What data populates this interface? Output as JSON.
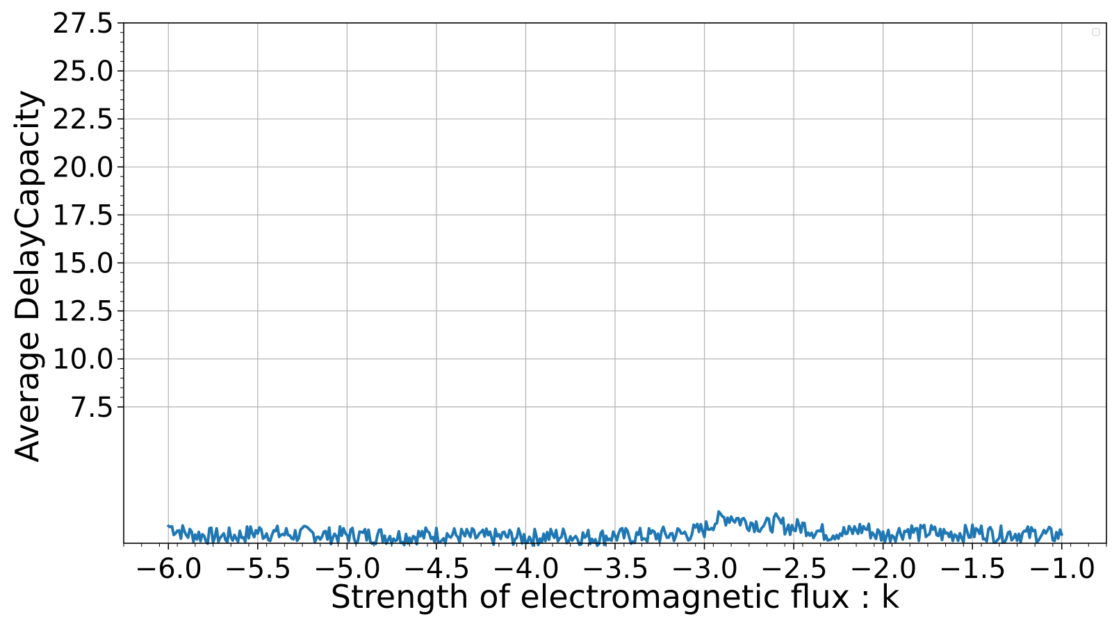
{
  "chart_data": {
    "type": "line",
    "title": "",
    "xlabel": "Strength of electromagnetic flux : k",
    "ylabel": "Average DelayCapacity",
    "xlim": [
      -6.25,
      -0.75
    ],
    "ylim": [
      0.4,
      27.5
    ],
    "x_tick_values": [
      -6.0,
      -5.5,
      -5.0,
      -4.5,
      -4.0,
      -3.5,
      -3.0,
      -2.5,
      -2.0,
      -1.5,
      -1.0
    ],
    "x_tick_labels": [
      "−6.0",
      "−5.5",
      "−5.0",
      "−4.5",
      "−4.0",
      "−3.5",
      "−3.0",
      "−2.5",
      "−2.0",
      "−1.5",
      "−1.0"
    ],
    "y_tick_values": [
      7.5,
      10.0,
      12.5,
      15.0,
      17.5,
      20.0,
      22.5,
      25.0,
      27.5
    ],
    "y_tick_labels": [
      "7.5",
      "10.0",
      "12.5",
      "15.0",
      "17.5",
      "20.0",
      "22.5",
      "25.0",
      "27.5"
    ],
    "grid": true,
    "legend": "top-right",
    "colors": {
      "line": "#1f77b4",
      "grid": "#b0b0b0",
      "axes": "#000000"
    },
    "series": [
      {
        "x": [
          -6.0,
          -5.9,
          -5.8,
          -5.7,
          -5.6,
          -5.5,
          -5.4,
          -5.3,
          -5.2,
          -5.1,
          -5.0,
          -4.9,
          -4.8,
          -4.7,
          -4.6,
          -4.5,
          -4.4,
          -4.3,
          -4.2,
          -4.1,
          -4.0,
          -3.9,
          -3.8,
          -3.7,
          -3.6,
          -3.5,
          -3.4,
          -3.3,
          -3.2,
          -3.1,
          -3.0,
          -2.95,
          -2.9,
          -2.85,
          -2.8,
          -2.75,
          -2.7,
          -2.65,
          -2.6,
          -2.55,
          -2.5,
          -2.45,
          -2.4,
          -2.35,
          -2.3,
          -2.25,
          -2.2,
          -2.15,
          -2.1,
          -2.05,
          -2.0,
          -1.95,
          -1.9,
          -1.85,
          -1.8,
          -1.75,
          -1.7,
          -1.65,
          -1.6,
          -1.55,
          -1.5,
          -1.45,
          -1.4,
          -1.35,
          -1.3,
          -1.25,
          -1.2,
          -1.15,
          -1.1,
          -1.05,
          -1.0
        ],
        "y": [
          1.3,
          0.9,
          0.8,
          0.75,
          0.8,
          1.0,
          0.9,
          0.85,
          0.9,
          0.8,
          0.85,
          0.8,
          0.8,
          0.75,
          0.8,
          0.85,
          0.8,
          0.75,
          0.7,
          0.75,
          0.7,
          0.75,
          0.8,
          0.75,
          0.7,
          0.8,
          0.75,
          0.8,
          0.85,
          0.9,
          1.1,
          1.5,
          1.7,
          1.8,
          1.6,
          1.5,
          1.4,
          1.3,
          1.5,
          1.3,
          1.2,
          1.3,
          1.1,
          1.0,
          0.9,
          1.0,
          0.9,
          1.1,
          1.2,
          0.9,
          0.8,
          0.9,
          1.0,
          1.1,
          0.9,
          1.0,
          0.9,
          0.85,
          0.9,
          0.9,
          0.95,
          1.0,
          0.9,
          0.85,
          0.9,
          0.9,
          0.85,
          0.9,
          0.85,
          0.8,
          0.85
        ]
      }
    ]
  }
}
